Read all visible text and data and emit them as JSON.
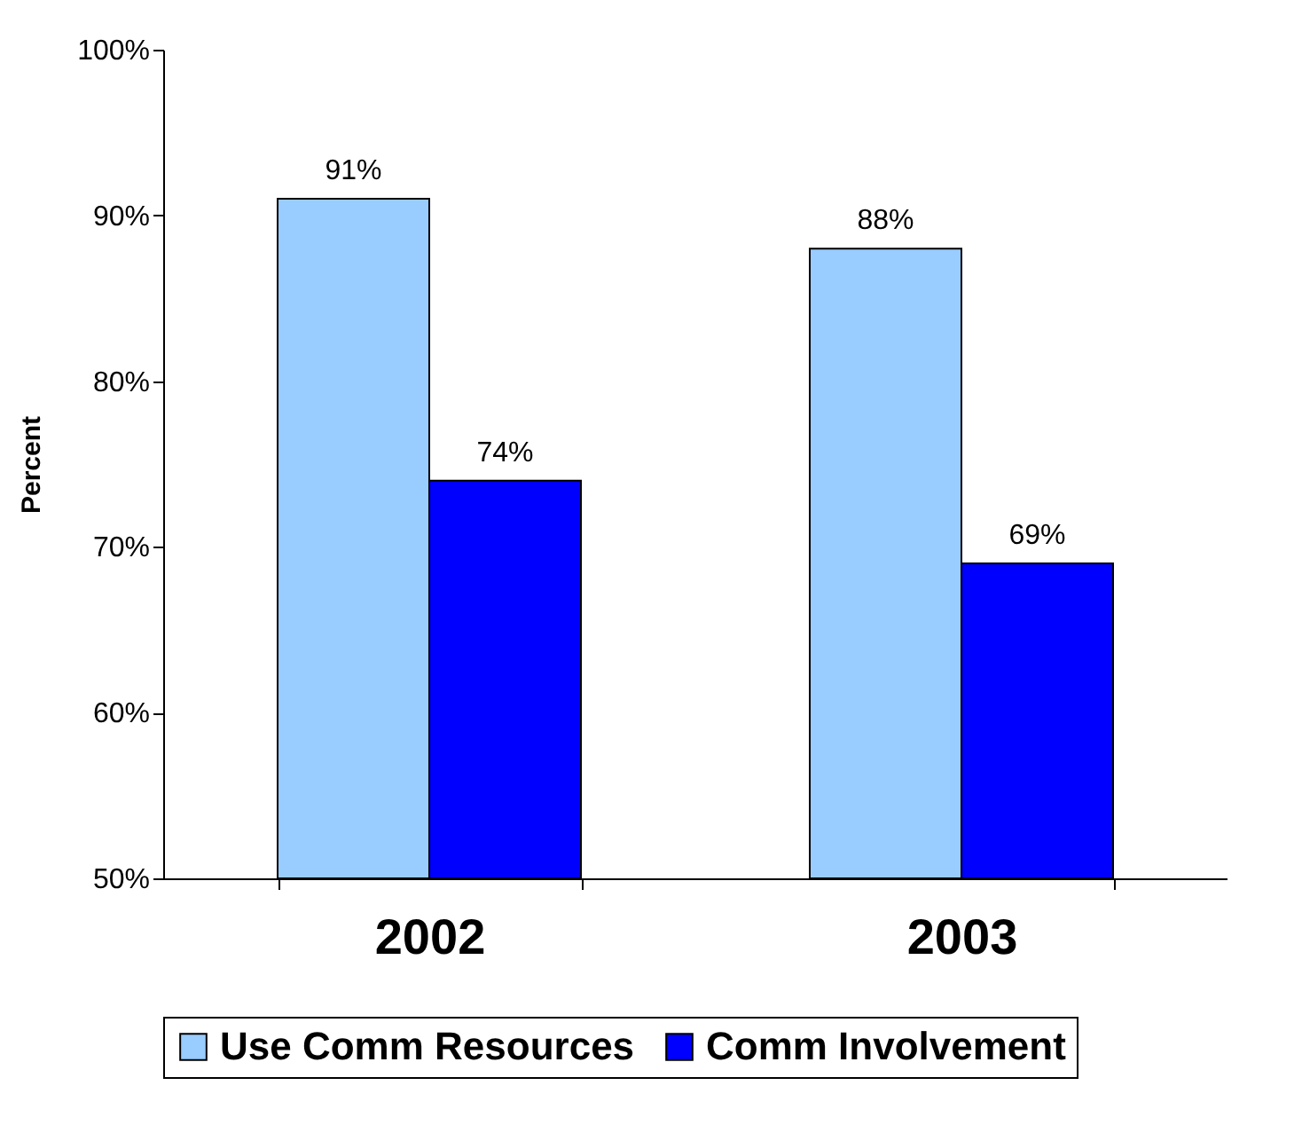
{
  "chart_data": {
    "type": "bar",
    "ylabel": "Percent",
    "categories": [
      "2002",
      "2003"
    ],
    "series": [
      {
        "name": "Use Comm Resources",
        "color": "#99ccff",
        "values": [
          91,
          88
        ],
        "value_labels": [
          "91%",
          "88%"
        ]
      },
      {
        "name": "Comm Involvement",
        "color": "#0000ff",
        "values": [
          74,
          69
        ],
        "value_labels": [
          "74%",
          "69%"
        ]
      }
    ],
    "ylim": [
      50,
      100
    ],
    "yticks": [
      {
        "value": 50,
        "label": "50%"
      },
      {
        "value": 60,
        "label": "60%"
      },
      {
        "value": 70,
        "label": "70%"
      },
      {
        "value": 80,
        "label": "80%"
      },
      {
        "value": 90,
        "label": "90%"
      },
      {
        "value": 100,
        "label": "100%"
      }
    ],
    "grid": false,
    "legend": "bottom"
  }
}
